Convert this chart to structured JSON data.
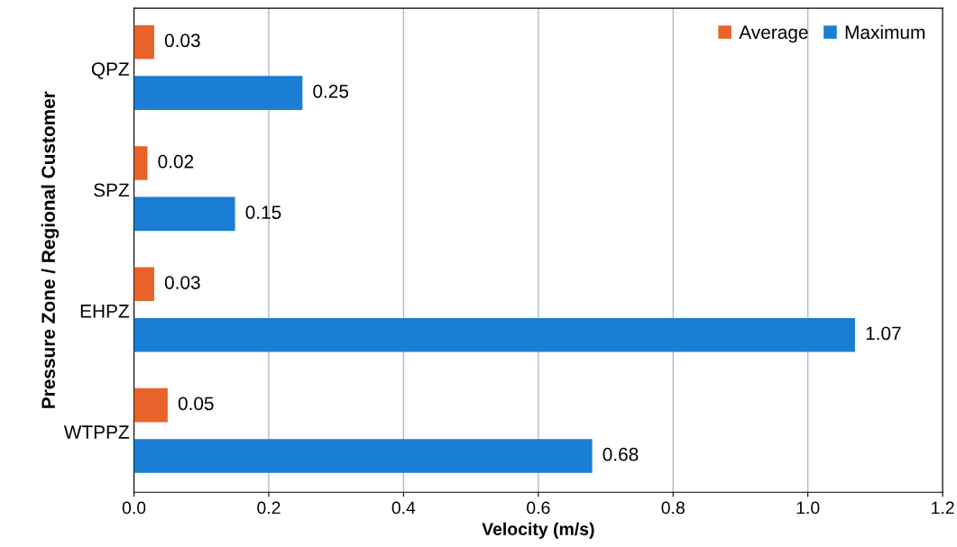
{
  "chart_data": {
    "type": "bar",
    "orientation": "horizontal",
    "xlabel": "Velocity (m/s)",
    "ylabel": "Pressure Zone / Regional Customer",
    "categories": [
      "QPZ",
      "SPZ",
      "EHPZ",
      "WTPPZ"
    ],
    "series": [
      {
        "name": "Average",
        "color": "#e8632a",
        "values": [
          0.03,
          0.02,
          0.03,
          0.05
        ]
      },
      {
        "name": "Maximum",
        "color": "#1a7fd4",
        "values": [
          0.25,
          0.15,
          1.07,
          0.68
        ]
      }
    ],
    "data_labels": true,
    "xlim": [
      0,
      1.2
    ],
    "xticks": [
      {
        "value": 0,
        "label": "0.0"
      },
      {
        "value": 0.2,
        "label": "0.2"
      },
      {
        "value": 0.4,
        "label": "0.4"
      },
      {
        "value": 0.6,
        "label": "0.6"
      },
      {
        "value": 0.8,
        "label": "0.8"
      },
      {
        "value": 1.0,
        "label": "1.0"
      },
      {
        "value": 1.2,
        "label": "1.2"
      }
    ],
    "grid": "x",
    "legend": "top right"
  }
}
